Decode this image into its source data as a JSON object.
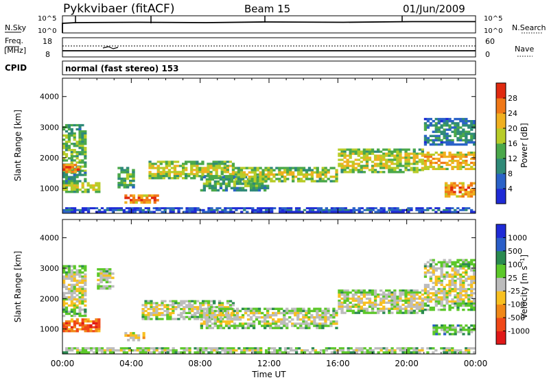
{
  "header": {
    "title": "Pykkvibaer (fitACF)",
    "beam": "Beam 15",
    "date": "01/Jun/2009"
  },
  "nsky_panel": {
    "left_label": "N.Sky",
    "right_label": "N.Search",
    "left_ticks": [
      "10^5",
      "10^0"
    ],
    "right_ticks": [
      "10^5",
      "10^0"
    ]
  },
  "freq_panel": {
    "left_label_1": "Freq.",
    "left_label_2": "[MHz]",
    "right_label": "Nave",
    "left_ticks": [
      "18",
      "8"
    ],
    "right_ticks": [
      "60",
      "0"
    ]
  },
  "cpid": {
    "label": "CPID",
    "text": "normal (fast stereo) 153"
  },
  "chart_data": [
    {
      "type": "heatmap",
      "quantity": "Power",
      "ylabel": "Slant Range [km]",
      "ylim": [
        180,
        4600
      ],
      "yticks": [
        1000,
        2000,
        3000,
        4000
      ],
      "xlim_hours": [
        0,
        24
      ],
      "colorbar_label": "Power [dB]",
      "colorbar_ticks": [
        "4",
        "8",
        "12",
        "16",
        "20",
        "24",
        "28"
      ],
      "colorbar_colors": [
        "#1f2bd6",
        "#2a62c8",
        "#2f8a78",
        "#4aa84a",
        "#b8cc28",
        "#f0b020",
        "#f07818",
        "#e02a10"
      ],
      "regions": [
        {
          "t0": 0.0,
          "t1": 1.4,
          "r0": 1200,
          "r1": 3100,
          "level": 3
        },
        {
          "t0": 0.0,
          "t1": 1.0,
          "r0": 1500,
          "r1": 1800,
          "level": 6
        },
        {
          "t0": 0.0,
          "t1": 2.2,
          "r0": 850,
          "r1": 1200,
          "level": 4
        },
        {
          "t0": 3.2,
          "t1": 4.2,
          "r0": 1000,
          "r1": 1700,
          "level": 3
        },
        {
          "t0": 3.6,
          "t1": 5.6,
          "r0": 500,
          "r1": 800,
          "level": 6
        },
        {
          "t0": 5.0,
          "t1": 10.0,
          "r0": 1300,
          "r1": 1900,
          "level": 4
        },
        {
          "t0": 8.0,
          "t1": 12.0,
          "r0": 900,
          "r1": 1400,
          "level": 3
        },
        {
          "t0": 10.0,
          "t1": 16.0,
          "r0": 1200,
          "r1": 1700,
          "level": 4
        },
        {
          "t0": 16.0,
          "t1": 21.0,
          "r0": 1500,
          "r1": 2300,
          "level": 4
        },
        {
          "t0": 21.0,
          "t1": 24.0,
          "r0": 1600,
          "r1": 2200,
          "level": 5
        },
        {
          "t0": 21.0,
          "t1": 24.0,
          "r0": 2400,
          "r1": 3300,
          "level": 2
        },
        {
          "t0": 22.2,
          "t1": 24.0,
          "r0": 700,
          "r1": 1200,
          "level": 6
        },
        {
          "t0": 0.0,
          "t1": 24.0,
          "r0": 200,
          "r1": 380,
          "level": 1
        }
      ]
    },
    {
      "type": "heatmap",
      "quantity": "Velocity",
      "ylabel": "Slant Range [km]",
      "ylim": [
        180,
        4600
      ],
      "yticks": [
        1000,
        2000,
        3000,
        4000
      ],
      "xlim_hours": [
        0,
        24
      ],
      "xticks": [
        "00:00",
        "04:00",
        "08:00",
        "12:00",
        "16:00",
        "20:00",
        "00:00"
      ],
      "xlabel": "Time UT",
      "colorbar_label": "Velocity [m s^-1]",
      "colorbar_ticks": [
        "1000",
        "500",
        "100",
        "25",
        "-25",
        "-100",
        "-500",
        "-1000"
      ],
      "colorbar_colors": [
        "#1f2bd6",
        "#2a5ec8",
        "#2a8a50",
        "#5cc82a",
        "#bcbcbc",
        "#f8c020",
        "#f08818",
        "#f04818",
        "#e01818"
      ],
      "regions": [
        {
          "t0": 0.0,
          "t1": 2.2,
          "r0": 900,
          "r1": 1350,
          "level": 7
        },
        {
          "t0": 0.0,
          "t1": 1.4,
          "r0": 1400,
          "r1": 3100,
          "level": 4
        },
        {
          "t0": 2.0,
          "t1": 3.0,
          "r0": 2300,
          "r1": 3000,
          "level": 4
        },
        {
          "t0": 3.6,
          "t1": 4.8,
          "r0": 600,
          "r1": 900,
          "level": 5
        },
        {
          "t0": 4.6,
          "t1": 10.0,
          "r0": 1300,
          "r1": 1950,
          "level": 4
        },
        {
          "t0": 8.0,
          "t1": 16.0,
          "r0": 1000,
          "r1": 1700,
          "level": 4
        },
        {
          "t0": 16.0,
          "t1": 21.0,
          "r0": 1500,
          "r1": 2300,
          "level": 4
        },
        {
          "t0": 21.0,
          "t1": 24.0,
          "r0": 1600,
          "r1": 3300,
          "level": 4
        },
        {
          "t0": 21.5,
          "t1": 24.0,
          "r0": 800,
          "r1": 1150,
          "level": 3
        },
        {
          "t0": 0.0,
          "t1": 24.0,
          "r0": 200,
          "r1": 400,
          "level": 4
        }
      ]
    }
  ]
}
